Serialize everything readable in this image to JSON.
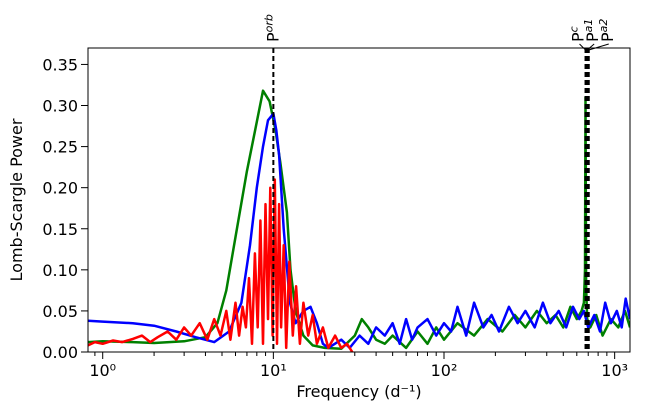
{
  "chart_data": {
    "type": "line",
    "title": "",
    "xlabel": "Frequency (d⁻¹)",
    "ylabel": "Lomb-Scargle Power",
    "x_scale": "log",
    "xlim": [
      0.82,
      1230
    ],
    "ylim": [
      0,
      0.37
    ],
    "x_ticks": [
      {
        "value": 1,
        "label": "10⁰"
      },
      {
        "value": 10,
        "label": "10¹"
      },
      {
        "value": 100,
        "label": "10²"
      },
      {
        "value": 1000,
        "label": "10³"
      }
    ],
    "y_ticks": [
      {
        "value": 0.0,
        "label": "0.00"
      },
      {
        "value": 0.05,
        "label": "0.05"
      },
      {
        "value": 0.1,
        "label": "0.10"
      },
      {
        "value": 0.15,
        "label": "0.15"
      },
      {
        "value": 0.2,
        "label": "0.20"
      },
      {
        "value": 0.25,
        "label": "0.25"
      },
      {
        "value": 0.3,
        "label": "0.30"
      },
      {
        "value": 0.35,
        "label": "0.35"
      }
    ],
    "grid": false,
    "legend": "none",
    "markers": [
      {
        "label": "P",
        "sub": "orb",
        "x": 10.0
      },
      {
        "label": "P",
        "sub": "c",
        "x": 675
      },
      {
        "label": "P",
        "sub": "a1",
        "x": 690
      },
      {
        "label": "P",
        "sub": "a2",
        "x": 705
      }
    ],
    "series": [
      {
        "color": "#008000",
        "x": [
          0.82,
          1.0,
          1.5,
          2.0,
          3.0,
          4.0,
          4.7,
          5.3,
          6.0,
          7.0,
          8.0,
          8.7,
          9.5,
          10.3,
          11.0,
          12.0,
          12.6,
          13.5,
          15.0,
          17.0,
          20.0,
          25.0,
          30.0,
          33.0,
          36.0,
          40.0,
          45.0,
          50.0,
          60.0,
          70.0,
          80.0,
          90.0,
          100.0,
          120.0,
          150.0,
          180.0,
          220.0,
          260.0,
          300.0,
          350.0,
          400.0,
          450.0,
          500.0,
          550.0,
          600.0,
          640.0,
          660.0,
          670.0,
          675.0,
          680.0,
          690.0,
          720.0,
          780.0,
          850.0,
          950.0,
          1050.0,
          1150.0,
          1230.0
        ],
        "y": [
          0.012,
          0.013,
          0.012,
          0.011,
          0.013,
          0.018,
          0.035,
          0.075,
          0.14,
          0.22,
          0.28,
          0.318,
          0.305,
          0.27,
          0.23,
          0.17,
          0.1,
          0.05,
          0.02,
          0.008,
          0.005,
          0.004,
          0.02,
          0.04,
          0.03,
          0.015,
          0.01,
          0.02,
          0.005,
          0.025,
          0.01,
          0.03,
          0.015,
          0.035,
          0.02,
          0.04,
          0.025,
          0.045,
          0.03,
          0.05,
          0.035,
          0.045,
          0.03,
          0.055,
          0.04,
          0.05,
          0.06,
          0.1,
          0.31,
          0.08,
          0.04,
          0.03,
          0.045,
          0.02,
          0.04,
          0.03,
          0.05,
          0.03
        ]
      },
      {
        "color": "#0000ff",
        "x": [
          0.82,
          1.0,
          1.5,
          2.0,
          2.7,
          3.5,
          4.5,
          5.5,
          6.5,
          7.3,
          8.0,
          8.7,
          9.3,
          10.0,
          10.4,
          10.8,
          11.5,
          12.5,
          13.5,
          15.0,
          16.5,
          18.0,
          19.5,
          21.0,
          25.0,
          28.0,
          32.0,
          36.0,
          40.0,
          45.0,
          50.0,
          55.0,
          60.0,
          65.0,
          70.0,
          80.0,
          90.0,
          100.0,
          110.0,
          120.0,
          135.0,
          150.0,
          170.0,
          190.0,
          210.0,
          240.0,
          270.0,
          300.0,
          340.0,
          380.0,
          420.0,
          470.0,
          520.0,
          570.0,
          620.0,
          660.0,
          700.0,
          760.0,
          820.0,
          880.0,
          950.0,
          1030.0,
          1100.0,
          1160.0,
          1230.0
        ],
        "y": [
          0.038,
          0.037,
          0.035,
          0.032,
          0.025,
          0.018,
          0.012,
          0.025,
          0.06,
          0.13,
          0.2,
          0.25,
          0.282,
          0.29,
          0.27,
          0.24,
          0.15,
          0.06,
          0.035,
          0.05,
          0.055,
          0.035,
          0.01,
          0.005,
          0.015,
          0.005,
          0.02,
          0.01,
          0.03,
          0.02,
          0.035,
          0.01,
          0.04,
          0.015,
          0.03,
          0.04,
          0.02,
          0.035,
          0.025,
          0.055,
          0.02,
          0.06,
          0.03,
          0.045,
          0.025,
          0.055,
          0.035,
          0.05,
          0.03,
          0.06,
          0.035,
          0.05,
          0.03,
          0.055,
          0.04,
          0.05,
          0.03,
          0.045,
          0.025,
          0.06,
          0.035,
          0.05,
          0.03,
          0.065,
          0.04
        ]
      },
      {
        "color": "#ff0000",
        "x": [
          0.82,
          0.9,
          1.0,
          1.15,
          1.3,
          1.5,
          1.7,
          1.9,
          2.1,
          2.4,
          2.7,
          3.0,
          3.3,
          3.7,
          4.1,
          4.5,
          4.9,
          5.3,
          5.6,
          6.0,
          6.3,
          6.6,
          6.9,
          7.2,
          7.5,
          7.8,
          8.1,
          8.4,
          8.7,
          9.0,
          9.3,
          9.6,
          9.9,
          10.2,
          10.5,
          10.8,
          11.1,
          11.5,
          11.9,
          12.4,
          13.0,
          13.6,
          14.3,
          15.0,
          16.0,
          17.0,
          18.0,
          19.5,
          21.0,
          23.0,
          25.0,
          27.0,
          29.0
        ],
        "y": [
          0.008,
          0.012,
          0.01,
          0.014,
          0.012,
          0.016,
          0.02,
          0.012,
          0.018,
          0.025,
          0.015,
          0.03,
          0.02,
          0.035,
          0.015,
          0.04,
          0.02,
          0.05,
          0.015,
          0.06,
          0.02,
          0.055,
          0.03,
          0.09,
          0.01,
          0.12,
          0.03,
          0.16,
          0.01,
          0.18,
          0.04,
          0.2,
          0.02,
          0.21,
          0.01,
          0.18,
          0.03,
          0.13,
          0.005,
          0.11,
          0.02,
          0.08,
          0.01,
          0.06,
          0.02,
          0.045,
          0.01,
          0.03,
          0.005,
          0.02,
          0.005,
          0.01,
          0.0
        ]
      }
    ]
  }
}
